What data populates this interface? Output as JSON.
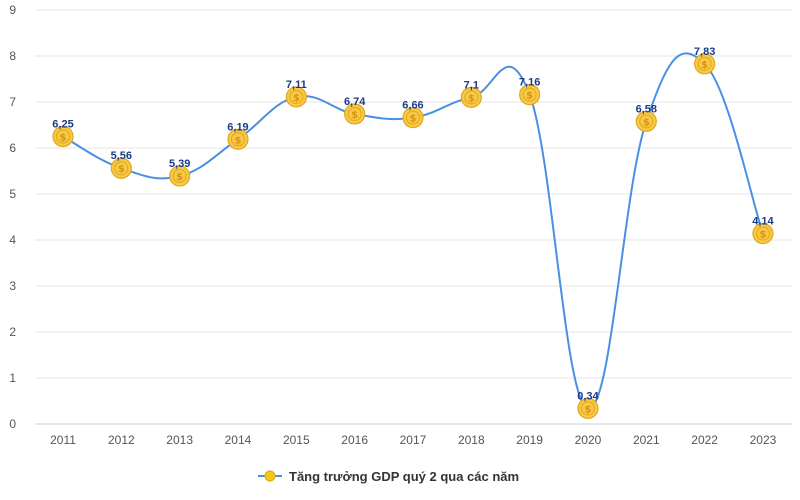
{
  "chart_data": {
    "type": "line",
    "categories": [
      "2011",
      "2012",
      "2013",
      "2014",
      "2015",
      "2016",
      "2017",
      "2018",
      "2019",
      "2020",
      "2021",
      "2022",
      "2023"
    ],
    "series": [
      {
        "name": "Tăng trưởng GDP quý 2 qua các năm",
        "values": [
          6.25,
          5.56,
          5.39,
          6.19,
          7.11,
          6.74,
          6.66,
          7.1,
          7.16,
          0.34,
          6.58,
          7.83,
          4.14
        ],
        "data_labels": [
          "6,25",
          "5,56",
          "5,39",
          "6,19",
          "7,11",
          "6,74",
          "6,66",
          "7,1",
          "7,16",
          "0,34",
          "6,58",
          "7,83",
          "4,14"
        ]
      }
    ],
    "y_ticks": [
      "0",
      "1",
      "2",
      "3",
      "4",
      "5",
      "6",
      "7",
      "8",
      "9"
    ],
    "ylim": [
      0,
      9
    ],
    "grid": true,
    "legend_position": "bottom",
    "line_color": "#4a90e2",
    "marker_color": "#f5c518",
    "marker_icon": "coin-icon"
  }
}
